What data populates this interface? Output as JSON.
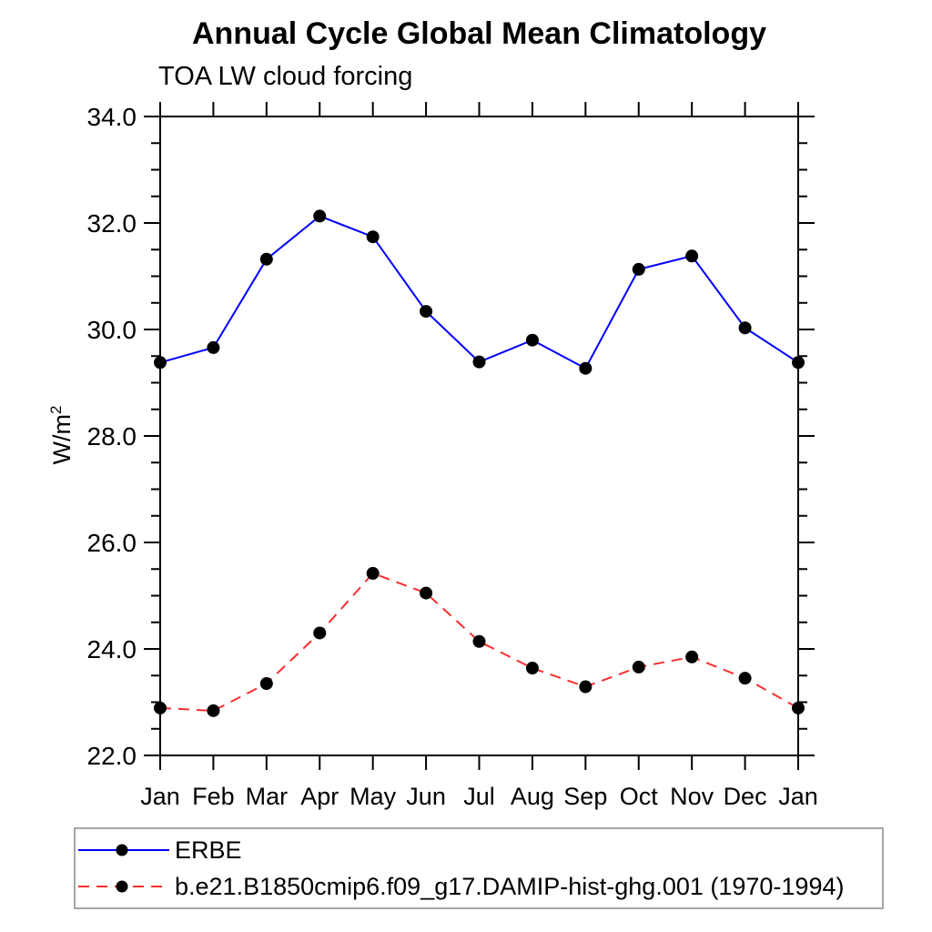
{
  "header": {
    "title": "Annual Cycle Global Mean Climatology",
    "subtitle": "TOA LW cloud forcing"
  },
  "y_axis": {
    "label": "W/m",
    "label_exponent": "2",
    "min": 22.0,
    "max": 34.0,
    "major_step": 2.0,
    "minor_step": 0.5,
    "tick_labels": [
      "22.0",
      "24.0",
      "26.0",
      "28.0",
      "30.0",
      "32.0",
      "34.0"
    ]
  },
  "x_axis": {
    "labels": [
      "Jan",
      "Feb",
      "Mar",
      "Apr",
      "May",
      "Jun",
      "Jul",
      "Aug",
      "Sep",
      "Oct",
      "Nov",
      "Dec",
      "Jan"
    ]
  },
  "colors": {
    "erbe_line": "#0000ff",
    "model_line": "#f82e2e",
    "marker": "#000000",
    "axis": "#000000",
    "legend_border": "#a6a6a6"
  },
  "chart_data": {
    "type": "line",
    "title": "Annual Cycle Global Mean Climatology",
    "subtitle": "TOA LW cloud forcing",
    "ylabel": "W/m²",
    "xlabel": "",
    "categories": [
      "Jan",
      "Feb",
      "Mar",
      "Apr",
      "May",
      "Jun",
      "Jul",
      "Aug",
      "Sep",
      "Oct",
      "Nov",
      "Dec",
      "Jan"
    ],
    "series": [
      {
        "name": "ERBE",
        "color": "#0000ff",
        "style": "solid",
        "marker": "filled-circle",
        "marker_color": "#000000",
        "values": [
          29.38,
          29.66,
          31.32,
          32.13,
          31.74,
          30.34,
          29.39,
          29.8,
          29.27,
          31.13,
          31.38,
          30.03,
          29.38
        ]
      },
      {
        "name": "b.e21.B1850cmip6.f09_g17.DAMIP-hist-ghg.001 (1970-1994)",
        "color": "#f82e2e",
        "style": "dashed",
        "marker": "filled-circle",
        "marker_color": "#000000",
        "values": [
          22.89,
          22.84,
          23.35,
          24.3,
          25.42,
          25.05,
          24.14,
          23.64,
          23.29,
          23.66,
          23.85,
          23.45,
          22.89
        ]
      }
    ],
    "ylim": [
      22.0,
      34.0
    ],
    "ytick_major": 2.0,
    "ytick_minor": 0.5,
    "grid": false,
    "legend_position": "bottom-left"
  }
}
